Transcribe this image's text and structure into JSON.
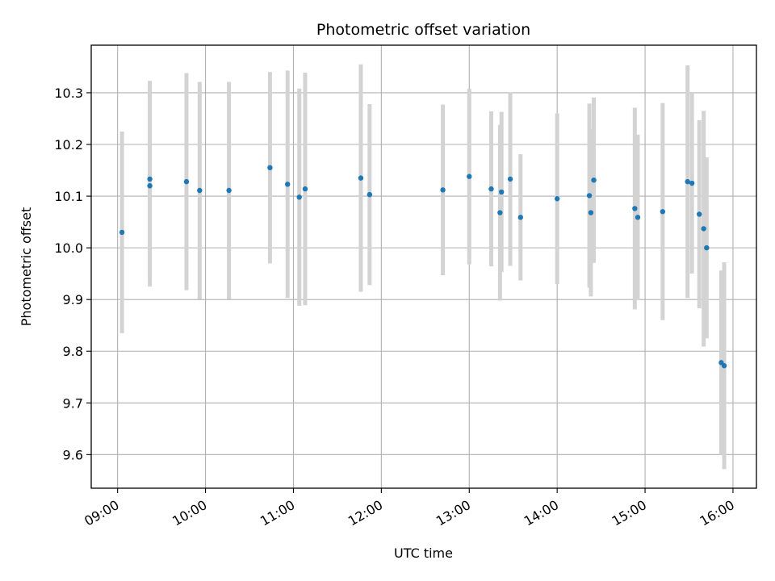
{
  "chart_data": {
    "type": "scatter",
    "title": "Photometric offset variation",
    "xlabel": "UTC time",
    "ylabel": "Photometric offset",
    "grid": true,
    "xlim": [
      "08:42",
      "16:16"
    ],
    "ylim": [
      9.535,
      10.392
    ],
    "x_ticks": [
      "09:00",
      "10:00",
      "11:00",
      "12:00",
      "13:00",
      "14:00",
      "15:00",
      "16:00"
    ],
    "y_ticks": [
      "9.6",
      "9.7",
      "9.8",
      "9.9",
      "10.0",
      "10.1",
      "10.2",
      "10.3"
    ],
    "colors": {
      "marker": "#1f77b4",
      "errorbar": "#d3d3d3",
      "grid": "#b0b0b0"
    },
    "series": [
      {
        "points": [
          {
            "x": "09:03",
            "y": 10.03,
            "yerr": 0.195
          },
          {
            "x": "09:22",
            "y": 10.133,
            "yerr": 0.19
          },
          {
            "x": "09:22",
            "y": 10.12,
            "yerr": 0.195
          },
          {
            "x": "09:47",
            "y": 10.128,
            "yerr": 0.21
          },
          {
            "x": "09:56",
            "y": 10.111,
            "yerr": 0.21
          },
          {
            "x": "10:16",
            "y": 10.111,
            "yerr": 0.21
          },
          {
            "x": "10:44",
            "y": 10.155,
            "yerr": 0.185
          },
          {
            "x": "10:56",
            "y": 10.123,
            "yerr": 0.22
          },
          {
            "x": "11:04",
            "y": 10.098,
            "yerr": 0.21
          },
          {
            "x": "11:08",
            "y": 10.114,
            "yerr": 0.225
          },
          {
            "x": "11:46",
            "y": 10.135,
            "yerr": 0.22
          },
          {
            "x": "11:52",
            "y": 10.103,
            "yerr": 0.175
          },
          {
            "x": "12:42",
            "y": 10.112,
            "yerr": 0.165
          },
          {
            "x": "13:00",
            "y": 10.138,
            "yerr": 0.17
          },
          {
            "x": "13:15",
            "y": 10.114,
            "yerr": 0.15
          },
          {
            "x": "13:22",
            "y": 10.108,
            "yerr": 0.155
          },
          {
            "x": "13:21",
            "y": 10.068,
            "yerr": 0.17
          },
          {
            "x": "13:28",
            "y": 10.133,
            "yerr": 0.168
          },
          {
            "x": "13:35",
            "y": 10.059,
            "yerr": 0.122
          },
          {
            "x": "14:00",
            "y": 10.095,
            "yerr": 0.165
          },
          {
            "x": "14:22",
            "y": 10.101,
            "yerr": 0.178
          },
          {
            "x": "14:23",
            "y": 10.068,
            "yerr": 0.162
          },
          {
            "x": "14:25",
            "y": 10.131,
            "yerr": 0.16
          },
          {
            "x": "14:53",
            "y": 10.076,
            "yerr": 0.195
          },
          {
            "x": "14:55",
            "y": 10.059,
            "yerr": 0.16
          },
          {
            "x": "15:12",
            "y": 10.07,
            "yerr": 0.21
          },
          {
            "x": "15:29",
            "y": 10.128,
            "yerr": 0.225
          },
          {
            "x": "15:32",
            "y": 10.125,
            "yerr": 0.175
          },
          {
            "x": "15:37",
            "y": 10.065,
            "yerr": 0.182
          },
          {
            "x": "15:40",
            "y": 10.037,
            "yerr": 0.228
          },
          {
            "x": "15:42",
            "y": 10.0,
            "yerr": 0.175
          },
          {
            "x": "15:52",
            "y": 9.778,
            "yerr": 0.178
          },
          {
            "x": "15:54",
            "y": 9.772,
            "yerr": 0.2
          }
        ]
      }
    ]
  }
}
